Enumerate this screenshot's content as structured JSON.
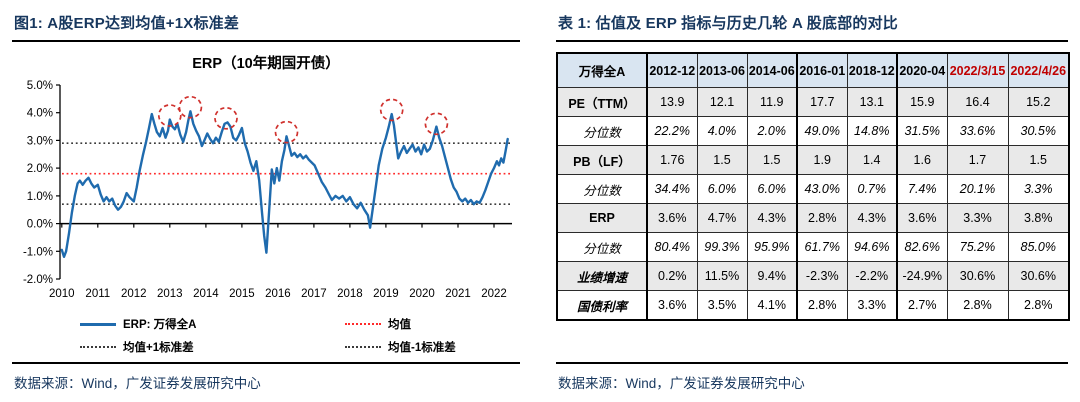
{
  "colors": {
    "navy": "#17375E",
    "red": "#C00000",
    "line_blue": "#1F6BAE",
    "mean_red": "#FF2A2A",
    "band_gray": "#3a3a3a",
    "circle_red": "#D0312D",
    "header_bg": "#D9E5F1",
    "shaded_row_bg": "#E9E9E9"
  },
  "figure_panel": {
    "title": "图1: A股ERP达到均值+1X标准差",
    "source": "数据来源：Wind，广发证券发展研究中心"
  },
  "table_panel": {
    "title": "表 1: 估值及 ERP 指标与历史几轮 A 股底部的对比",
    "source": "数据来源：Wind，广发证券发展研究中心"
  },
  "chart_data": {
    "type": "line",
    "title": "ERP（10年期国开债）",
    "xlim": [
      2009.95,
      2022.5
    ],
    "ylim": [
      -2,
      5
    ],
    "x_tick_labels": [
      "2010",
      "2011",
      "2012",
      "2013",
      "2014",
      "2015",
      "2016",
      "2017",
      "2018",
      "2019",
      "2020",
      "2021",
      "2022"
    ],
    "x_tick_values": [
      2010,
      2011,
      2012,
      2013,
      2014,
      2015,
      2016,
      2017,
      2018,
      2019,
      2020,
      2021,
      2022
    ],
    "y_tick_labels": [
      "5.0%",
      "4.0%",
      "3.0%",
      "2.0%",
      "1.0%",
      "0.0%",
      "-1.0%",
      "-2.0%"
    ],
    "y_tick_values": [
      5,
      4,
      3,
      2,
      1,
      0,
      -1,
      -2
    ],
    "series": [
      {
        "name": "ERP: 万得全A",
        "color": "#1F6BAE",
        "points": [
          [
            2010.0,
            -0.95
          ],
          [
            2010.06,
            -1.2
          ],
          [
            2010.12,
            -1.0
          ],
          [
            2010.2,
            -0.35
          ],
          [
            2010.28,
            0.4
          ],
          [
            2010.36,
            1.0
          ],
          [
            2010.44,
            1.45
          ],
          [
            2010.5,
            1.55
          ],
          [
            2010.58,
            1.4
          ],
          [
            2010.66,
            1.55
          ],
          [
            2010.74,
            1.65
          ],
          [
            2010.82,
            1.45
          ],
          [
            2010.9,
            1.3
          ],
          [
            2011.0,
            1.4
          ],
          [
            2011.08,
            1.05
          ],
          [
            2011.16,
            0.8
          ],
          [
            2011.24,
            0.95
          ],
          [
            2011.32,
            0.8
          ],
          [
            2011.4,
            0.9
          ],
          [
            2011.48,
            0.65
          ],
          [
            2011.56,
            0.5
          ],
          [
            2011.64,
            0.6
          ],
          [
            2011.72,
            0.8
          ],
          [
            2011.8,
            1.1
          ],
          [
            2011.88,
            0.95
          ],
          [
            2012.0,
            0.8
          ],
          [
            2012.08,
            1.3
          ],
          [
            2012.16,
            1.9
          ],
          [
            2012.25,
            2.45
          ],
          [
            2012.34,
            2.95
          ],
          [
            2012.42,
            3.45
          ],
          [
            2012.5,
            3.95
          ],
          [
            2012.57,
            3.6
          ],
          [
            2012.64,
            3.3
          ],
          [
            2012.72,
            3.15
          ],
          [
            2012.8,
            3.45
          ],
          [
            2012.88,
            3.1
          ],
          [
            2012.95,
            3.35
          ],
          [
            2013.0,
            3.75
          ],
          [
            2013.07,
            3.5
          ],
          [
            2013.14,
            3.4
          ],
          [
            2013.21,
            3.6
          ],
          [
            2013.29,
            3.2
          ],
          [
            2013.37,
            2.95
          ],
          [
            2013.45,
            3.3
          ],
          [
            2013.51,
            3.7
          ],
          [
            2013.57,
            4.05
          ],
          [
            2013.65,
            3.6
          ],
          [
            2013.73,
            3.35
          ],
          [
            2013.81,
            3.15
          ],
          [
            2013.89,
            2.8
          ],
          [
            2013.96,
            3.0
          ],
          [
            2014.04,
            3.25
          ],
          [
            2014.12,
            3.05
          ],
          [
            2014.2,
            2.9
          ],
          [
            2014.28,
            3.1
          ],
          [
            2014.36,
            2.95
          ],
          [
            2014.44,
            3.3
          ],
          [
            2014.52,
            3.6
          ],
          [
            2014.6,
            3.65
          ],
          [
            2014.68,
            3.5
          ],
          [
            2014.76,
            3.1
          ],
          [
            2014.84,
            3.0
          ],
          [
            2014.92,
            3.2
          ],
          [
            2015.0,
            3.45
          ],
          [
            2015.08,
            2.9
          ],
          [
            2015.16,
            2.6
          ],
          [
            2015.24,
            2.2
          ],
          [
            2015.32,
            1.9
          ],
          [
            2015.4,
            2.25
          ],
          [
            2015.48,
            1.55
          ],
          [
            2015.56,
            0.4
          ],
          [
            2015.62,
            -0.45
          ],
          [
            2015.68,
            -1.05
          ],
          [
            2015.76,
            0.55
          ],
          [
            2015.83,
            1.95
          ],
          [
            2015.9,
            1.45
          ],
          [
            2015.97,
            2.0
          ],
          [
            2016.04,
            1.55
          ],
          [
            2016.11,
            2.25
          ],
          [
            2016.18,
            2.65
          ],
          [
            2016.24,
            3.15
          ],
          [
            2016.31,
            2.8
          ],
          [
            2016.38,
            2.45
          ],
          [
            2016.46,
            2.55
          ],
          [
            2016.54,
            2.4
          ],
          [
            2016.62,
            2.5
          ],
          [
            2016.7,
            2.35
          ],
          [
            2016.78,
            2.45
          ],
          [
            2016.86,
            2.3
          ],
          [
            2016.94,
            2.2
          ],
          [
            2017.02,
            2.1
          ],
          [
            2017.12,
            1.8
          ],
          [
            2017.22,
            1.5
          ],
          [
            2017.32,
            1.3
          ],
          [
            2017.42,
            1.05
          ],
          [
            2017.5,
            0.85
          ],
          [
            2017.6,
            1.0
          ],
          [
            2017.7,
            0.9
          ],
          [
            2017.8,
            1.0
          ],
          [
            2017.9,
            0.8
          ],
          [
            2018.0,
            0.95
          ],
          [
            2018.1,
            0.7
          ],
          [
            2018.2,
            0.55
          ],
          [
            2018.3,
            0.75
          ],
          [
            2018.4,
            0.5
          ],
          [
            2018.5,
            0.3
          ],
          [
            2018.56,
            -0.15
          ],
          [
            2018.64,
            0.6
          ],
          [
            2018.72,
            1.35
          ],
          [
            2018.8,
            2.1
          ],
          [
            2018.9,
            2.7
          ],
          [
            2019.0,
            3.1
          ],
          [
            2019.08,
            3.5
          ],
          [
            2019.16,
            3.95
          ],
          [
            2019.22,
            3.55
          ],
          [
            2019.28,
            2.95
          ],
          [
            2019.34,
            2.35
          ],
          [
            2019.42,
            2.6
          ],
          [
            2019.5,
            2.8
          ],
          [
            2019.58,
            2.55
          ],
          [
            2019.66,
            2.7
          ],
          [
            2019.74,
            2.85
          ],
          [
            2019.82,
            2.6
          ],
          [
            2019.9,
            2.75
          ],
          [
            2019.98,
            2.5
          ],
          [
            2020.06,
            2.85
          ],
          [
            2020.14,
            2.6
          ],
          [
            2020.22,
            2.7
          ],
          [
            2020.3,
            3.0
          ],
          [
            2020.4,
            3.5
          ],
          [
            2020.48,
            3.1
          ],
          [
            2020.56,
            2.8
          ],
          [
            2020.64,
            2.4
          ],
          [
            2020.72,
            2.0
          ],
          [
            2020.8,
            1.6
          ],
          [
            2020.88,
            1.3
          ],
          [
            2020.96,
            1.15
          ],
          [
            2021.04,
            0.9
          ],
          [
            2021.12,
            0.8
          ],
          [
            2021.2,
            0.9
          ],
          [
            2021.28,
            0.75
          ],
          [
            2021.36,
            0.85
          ],
          [
            2021.44,
            0.7
          ],
          [
            2021.52,
            0.8
          ],
          [
            2021.6,
            0.75
          ],
          [
            2021.68,
            0.95
          ],
          [
            2021.76,
            1.2
          ],
          [
            2021.84,
            1.5
          ],
          [
            2021.92,
            1.8
          ],
          [
            2022.0,
            2.0
          ],
          [
            2022.08,
            2.25
          ],
          [
            2022.14,
            2.1
          ],
          [
            2022.2,
            2.35
          ],
          [
            2022.26,
            2.2
          ],
          [
            2022.32,
            2.6
          ],
          [
            2022.38,
            3.05
          ]
        ]
      }
    ],
    "ref_lines": [
      {
        "name": "均值",
        "value": 1.8,
        "color": "#FF2A2A"
      },
      {
        "name": "均值+1标准差",
        "value": 2.9,
        "color": "#3a3a3a"
      },
      {
        "name": "均值-1标准差",
        "value": 0.7,
        "color": "#3a3a3a"
      }
    ],
    "annotations_circles": [
      {
        "x": 2013.0,
        "y": 3.9
      },
      {
        "x": 2013.57,
        "y": 4.2
      },
      {
        "x": 2014.56,
        "y": 3.8
      },
      {
        "x": 2016.24,
        "y": 3.3
      },
      {
        "x": 2019.16,
        "y": 4.1
      },
      {
        "x": 2020.4,
        "y": 3.6
      }
    ],
    "legend": [
      {
        "label": "ERP: 万得全A",
        "swatch": "solid",
        "color": "#1F6BAE"
      },
      {
        "label": "均值",
        "swatch": "dotted",
        "color": "#FF2A2A"
      },
      {
        "label": "均值+1标准差",
        "swatch": "dotted",
        "color": "#3a3a3a"
      },
      {
        "label": "均值-1标准差",
        "swatch": "dotted",
        "color": "#3a3a3a"
      }
    ],
    "legend_position": "bottom"
  },
  "table": {
    "corner": "万得全A",
    "columns": [
      "2012-12",
      "2013-06",
      "2014-06",
      "2016-01",
      "2018-12",
      "2020-04",
      "2022/3/15",
      "2022/4/26"
    ],
    "red_column_indexes": [
      6,
      7
    ],
    "thick_separator_after": [
      2,
      4
    ],
    "rows": [
      {
        "label": "PE（TTM）",
        "style": "bold",
        "shaded": true,
        "values": [
          "13.9",
          "12.1",
          "11.9",
          "17.7",
          "13.1",
          "15.9",
          "16.4",
          "15.2"
        ]
      },
      {
        "label": "分位数",
        "style": "italic",
        "shaded": false,
        "values": [
          "22.2%",
          "4.0%",
          "2.0%",
          "49.0%",
          "14.8%",
          "31.5%",
          "33.6%",
          "30.5%"
        ]
      },
      {
        "label": "PB（LF）",
        "style": "bold",
        "shaded": true,
        "values": [
          "1.76",
          "1.5",
          "1.5",
          "1.9",
          "1.4",
          "1.6",
          "1.7",
          "1.5"
        ]
      },
      {
        "label": "分位数",
        "style": "italic",
        "shaded": false,
        "values": [
          "34.4%",
          "6.0%",
          "6.0%",
          "43.0%",
          "0.7%",
          "7.4%",
          "20.1%",
          "3.3%"
        ]
      },
      {
        "label": "ERP",
        "style": "bold",
        "shaded": true,
        "values": [
          "3.6%",
          "4.7%",
          "4.3%",
          "2.8%",
          "4.3%",
          "3.6%",
          "3.3%",
          "3.8%"
        ]
      },
      {
        "label": "分位数",
        "style": "italic",
        "shaded": false,
        "values": [
          "80.4%",
          "99.3%",
          "95.9%",
          "61.7%",
          "94.6%",
          "82.6%",
          "75.2%",
          "85.0%"
        ]
      },
      {
        "label": "业绩增速",
        "style": "bold-italic",
        "shaded": true,
        "values": [
          "0.2%",
          "11.5%",
          "9.4%",
          "-2.3%",
          "-2.2%",
          "-24.9%",
          "30.6%",
          "30.6%"
        ]
      },
      {
        "label": "国债利率",
        "style": "bold-italic",
        "shaded": false,
        "values": [
          "3.6%",
          "3.5%",
          "4.1%",
          "2.8%",
          "3.3%",
          "2.7%",
          "2.8%",
          "2.8%"
        ]
      }
    ]
  }
}
